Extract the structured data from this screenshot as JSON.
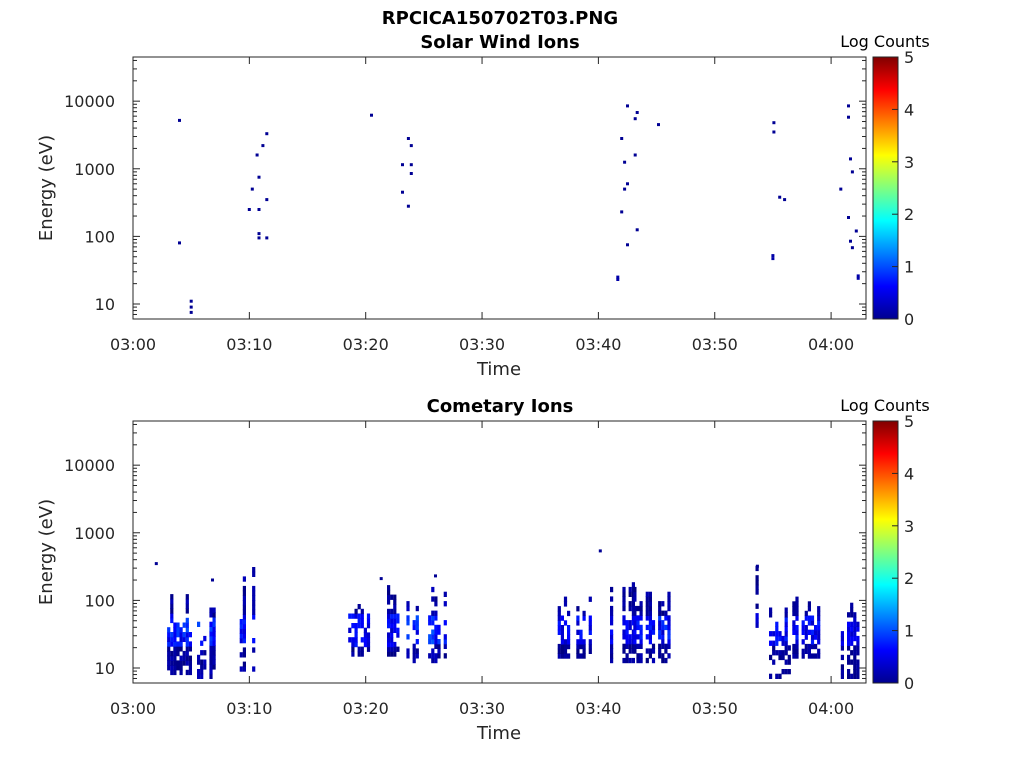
{
  "figure": {
    "file_title": "RPCICA150702T03.PNG"
  },
  "chart_data": [
    {
      "type": "heatmap",
      "title": "Solar Wind Ions",
      "xlabel": "Time",
      "ylabel": "Energy (eV)",
      "y_scale": "log",
      "ylim": [
        6,
        45000
      ],
      "x_range": [
        "03:00",
        "04:03"
      ],
      "x_ticks": [
        "03:00",
        "03:10",
        "03:20",
        "03:30",
        "03:40",
        "03:50",
        "04:00"
      ],
      "y_ticks": [
        "10",
        "100",
        "1000",
        "10000"
      ],
      "colorbar": {
        "label": "Log Counts",
        "range": [
          0,
          5
        ],
        "ticks": [
          "0",
          "1",
          "2",
          "3",
          "4",
          "5"
        ],
        "colormap": "jet"
      },
      "cells": [
        {
          "t": "03:04:00",
          "e": 5200,
          "v": 0.1
        },
        {
          "t": "03:04:00",
          "e": 80,
          "v": 0.1
        },
        {
          "t": "03:05:00",
          "e": 11,
          "v": 0.1
        },
        {
          "t": "03:05:00",
          "e": 9,
          "v": 0.1
        },
        {
          "t": "03:05:00",
          "e": 7.5,
          "v": 0.1
        },
        {
          "t": "03:10:00",
          "e": 250,
          "v": 0.1
        },
        {
          "t": "03:10:15",
          "e": 500,
          "v": 0.1
        },
        {
          "t": "03:10:40",
          "e": 1600,
          "v": 0.1
        },
        {
          "t": "03:10:50",
          "e": 750,
          "v": 0.1
        },
        {
          "t": "03:10:50",
          "e": 250,
          "v": 0.1
        },
        {
          "t": "03:10:50",
          "e": 110,
          "v": 0.1
        },
        {
          "t": "03:10:50",
          "e": 95,
          "v": 0.1
        },
        {
          "t": "03:11:10",
          "e": 2200,
          "v": 0.1
        },
        {
          "t": "03:11:30",
          "e": 3300,
          "v": 0.1
        },
        {
          "t": "03:11:30",
          "e": 350,
          "v": 0.1
        },
        {
          "t": "03:11:30",
          "e": 95,
          "v": 0.1
        },
        {
          "t": "03:20:30",
          "e": 6200,
          "v": 0.1
        },
        {
          "t": "03:23:10",
          "e": 1150,
          "v": 0.1
        },
        {
          "t": "03:23:10",
          "e": 450,
          "v": 0.1
        },
        {
          "t": "03:23:40",
          "e": 2800,
          "v": 0.1
        },
        {
          "t": "03:23:40",
          "e": 280,
          "v": 0.1
        },
        {
          "t": "03:23:55",
          "e": 2200,
          "v": 0.1
        },
        {
          "t": "03:23:55",
          "e": 1150,
          "v": 0.1
        },
        {
          "t": "03:23:55",
          "e": 850,
          "v": 0.1
        },
        {
          "t": "03:41:40",
          "e": 25,
          "v": 0.2
        },
        {
          "t": "03:41:40",
          "e": 23,
          "v": 0.2
        },
        {
          "t": "03:42:00",
          "e": 2800,
          "v": 0.1
        },
        {
          "t": "03:42:00",
          "e": 230,
          "v": 0.1
        },
        {
          "t": "03:42:15",
          "e": 1250,
          "v": 0.1
        },
        {
          "t": "03:42:15",
          "e": 500,
          "v": 0.1
        },
        {
          "t": "03:42:30",
          "e": 8500,
          "v": 0.1
        },
        {
          "t": "03:42:30",
          "e": 600,
          "v": 0.1
        },
        {
          "t": "03:42:30",
          "e": 75,
          "v": 0.1
        },
        {
          "t": "03:43:10",
          "e": 5500,
          "v": 0.1
        },
        {
          "t": "03:43:10",
          "e": 1600,
          "v": 0.1
        },
        {
          "t": "03:43:20",
          "e": 6800,
          "v": 0.1
        },
        {
          "t": "03:43:20",
          "e": 125,
          "v": 0.1
        },
        {
          "t": "03:45:10",
          "e": 4500,
          "v": 0.1
        },
        {
          "t": "03:55:05",
          "e": 4800,
          "v": 0.1
        },
        {
          "t": "03:55:05",
          "e": 3500,
          "v": 0.1
        },
        {
          "t": "03:55:00",
          "e": 52,
          "v": 0.2
        },
        {
          "t": "03:55:00",
          "e": 47,
          "v": 0.2
        },
        {
          "t": "03:55:35",
          "e": 380,
          "v": 0.1
        },
        {
          "t": "03:56:00",
          "e": 350,
          "v": 0.1
        },
        {
          "t": "04:00:50",
          "e": 500,
          "v": 0.1
        },
        {
          "t": "04:01:30",
          "e": 8500,
          "v": 0.1
        },
        {
          "t": "04:01:30",
          "e": 5800,
          "v": 0.1
        },
        {
          "t": "04:01:30",
          "e": 190,
          "v": 0.1
        },
        {
          "t": "04:01:40",
          "e": 1400,
          "v": 0.1
        },
        {
          "t": "04:01:40",
          "e": 85,
          "v": 0.1
        },
        {
          "t": "04:01:50",
          "e": 900,
          "v": 0.1
        },
        {
          "t": "04:01:50",
          "e": 68,
          "v": 0.1
        },
        {
          "t": "04:02:10",
          "e": 120,
          "v": 0.1
        },
        {
          "t": "04:02:20",
          "e": 26,
          "v": 0.2
        },
        {
          "t": "04:02:20",
          "e": 24,
          "v": 0.2
        }
      ]
    },
    {
      "type": "heatmap",
      "title": "Cometary Ions",
      "xlabel": "Time",
      "ylabel": "Energy (eV)",
      "y_scale": "log",
      "ylim": [
        6,
        45000
      ],
      "x_range": [
        "03:00",
        "04:03"
      ],
      "x_ticks": [
        "03:00",
        "03:10",
        "03:20",
        "03:30",
        "03:40",
        "03:50",
        "04:00"
      ],
      "y_ticks": [
        "10",
        "100",
        "1000",
        "10000"
      ],
      "colorbar": {
        "label": "Log Counts",
        "range": [
          0,
          5
        ],
        "ticks": [
          "0",
          "1",
          "2",
          "3",
          "4",
          "5"
        ],
        "colormap": "jet"
      },
      "bursts": [
        {
          "t0": "03:02:40",
          "t1": "03:05:00",
          "emin": 8,
          "emax": 120,
          "vmax": 1.0
        },
        {
          "t0": "03:05:30",
          "t1": "03:07:30",
          "emin": 7,
          "emax": 100,
          "vmax": 1.0
        },
        {
          "t0": "03:09:10",
          "t1": "03:10:30",
          "emin": 9,
          "emax": 330,
          "vmax": 1.0
        },
        {
          "t0": "03:18:30",
          "t1": "03:20:20",
          "emin": 15,
          "emax": 130,
          "vmax": 0.8
        },
        {
          "t0": "03:21:50",
          "t1": "03:23:30",
          "emin": 15,
          "emax": 200,
          "vmax": 0.8
        },
        {
          "t0": "03:23:30",
          "t1": "03:27:00",
          "emin": 12,
          "emax": 200,
          "vmax": 1.1
        },
        {
          "t0": "03:36:30",
          "t1": "03:39:20",
          "emin": 14,
          "emax": 120,
          "vmax": 0.8
        },
        {
          "t0": "03:41:00",
          "t1": "03:43:00",
          "emin": 12,
          "emax": 180,
          "vmax": 0.8
        },
        {
          "t0": "03:43:00",
          "t1": "03:46:30",
          "emin": 12,
          "emax": 160,
          "vmax": 0.9
        },
        {
          "t0": "03:53:30",
          "t1": "03:54:40",
          "emin": 40,
          "emax": 300,
          "vmax": 0.6
        },
        {
          "t0": "03:54:40",
          "t1": "03:56:30",
          "emin": 7,
          "emax": 110,
          "vmax": 0.8
        },
        {
          "t0": "03:56:40",
          "t1": "03:59:00",
          "emin": 14,
          "emax": 130,
          "vmax": 0.8
        },
        {
          "t0": "04:00:50",
          "t1": "04:02:20",
          "emin": 7,
          "emax": 180,
          "vmax": 0.7
        }
      ],
      "cells": [
        {
          "t": "03:02:00",
          "e": 350,
          "v": 0.1
        },
        {
          "t": "03:06:50",
          "e": 200,
          "v": 0.1
        },
        {
          "t": "03:21:20",
          "e": 210,
          "v": 0.1
        },
        {
          "t": "03:26:00",
          "e": 230,
          "v": 0.1
        },
        {
          "t": "03:40:10",
          "e": 540,
          "v": 0.1
        },
        {
          "t": "03:53:40",
          "e": 320,
          "v": 0.1
        }
      ]
    }
  ]
}
